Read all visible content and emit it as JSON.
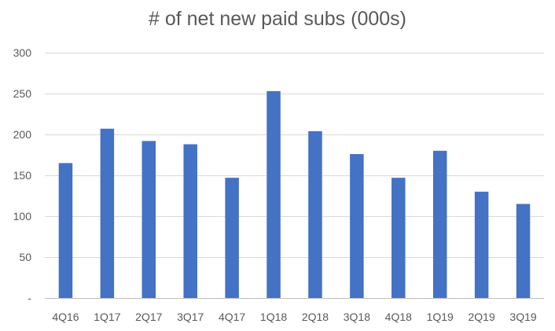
{
  "chart_data": {
    "type": "bar",
    "title": "# of net new paid subs (000s)",
    "categories": [
      "4Q16",
      "1Q17",
      "2Q17",
      "3Q17",
      "4Q17",
      "1Q18",
      "2Q18",
      "3Q18",
      "4Q18",
      "1Q19",
      "2Q19",
      "3Q19"
    ],
    "values": [
      165,
      207,
      192,
      188,
      147,
      253,
      204,
      176,
      147,
      180,
      130,
      115
    ],
    "ylim": [
      0,
      300
    ],
    "yticks": [
      0,
      50,
      100,
      150,
      200,
      250,
      300
    ],
    "ytick_labels": [
      "-",
      "50",
      "100",
      "150",
      "200",
      "250",
      "300"
    ],
    "xlabel": "",
    "ylabel": "",
    "grid": true,
    "legend": "none",
    "colors": {
      "bar": "#4472C4",
      "grid": "#D9D9D9",
      "axis": "#BFBFBF",
      "text": "#595959"
    }
  }
}
